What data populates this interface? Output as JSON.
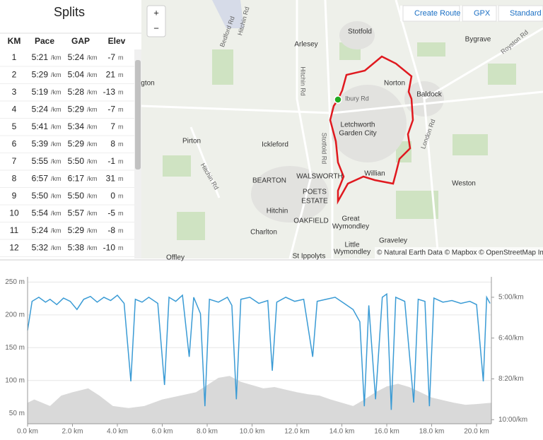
{
  "splits": {
    "title": "Splits",
    "columns": [
      "KM",
      "Pace",
      "GAP",
      "Elev"
    ],
    "units": {
      "pace": "/km",
      "elev": "m"
    },
    "rows": [
      {
        "km": "1",
        "pace": "5:21",
        "gap": "5:24",
        "elev": "-7"
      },
      {
        "km": "2",
        "pace": "5:29",
        "gap": "5:04",
        "elev": "21"
      },
      {
        "km": "3",
        "pace": "5:19",
        "gap": "5:28",
        "elev": "-13"
      },
      {
        "km": "4",
        "pace": "5:24",
        "gap": "5:29",
        "elev": "-7"
      },
      {
        "km": "5",
        "pace": "5:41",
        "gap": "5:34",
        "elev": "7"
      },
      {
        "km": "6",
        "pace": "5:39",
        "gap": "5:29",
        "elev": "8"
      },
      {
        "km": "7",
        "pace": "5:55",
        "gap": "5:50",
        "elev": "-1"
      },
      {
        "km": "8",
        "pace": "6:57",
        "gap": "6:17",
        "elev": "31"
      },
      {
        "km": "9",
        "pace": "5:50",
        "gap": "5:50",
        "elev": "0"
      },
      {
        "km": "10",
        "pace": "5:54",
        "gap": "5:57",
        "elev": "-5"
      },
      {
        "km": "11",
        "pace": "5:24",
        "gap": "5:29",
        "elev": "-8"
      },
      {
        "km": "12",
        "pace": "5:32",
        "gap": "5:38",
        "elev": "-10"
      }
    ]
  },
  "map": {
    "buttons": [
      "Create Route",
      "GPX",
      "Standard Ma"
    ],
    "zoom": [
      "+",
      "−"
    ],
    "attribution": "© Natural Earth Data © Mapbox © OpenStreetMap Im",
    "places": [
      "Stotfold",
      "Arlesey",
      "Bygrave",
      "Norton",
      "Baldock",
      "Letchworth",
      "Garden City",
      "Pirton",
      "Ickleford",
      "Willian",
      "BEARTON",
      "WALSWORTH",
      "POETS",
      "ESTATE",
      "Weston",
      "Hitchin",
      "OAKFIELD",
      "Great",
      "Wymondley",
      "Charlton",
      "Graveley",
      "Little",
      "Wymondley",
      "St Ippolyts",
      "Offley",
      "gton"
    ],
    "roads": [
      "Hitchin Rd",
      "Bedford Rd",
      "Hitchin Rd",
      "Stotfold Rd",
      "London Rd",
      "Royston Rd",
      "lbury Rd",
      "Hitchin Rd"
    ]
  },
  "chart_data": {
    "type": "line",
    "xlim": [
      0,
      20.66
    ],
    "ylim": [
      34,
      258
    ],
    "y2lim": [
      610,
      250
    ],
    "xticks": [
      {
        "value": 0,
        "label": "0.0 km"
      },
      {
        "value": 2,
        "label": "2.0 km"
      },
      {
        "value": 4,
        "label": "4.0 km"
      },
      {
        "value": 6,
        "label": "6.0 km"
      },
      {
        "value": 8,
        "label": "8.0 km"
      },
      {
        "value": 10,
        "label": "10.0 km"
      },
      {
        "value": 12,
        "label": "12.0 km"
      },
      {
        "value": 14,
        "label": "14.0 km"
      },
      {
        "value": 16,
        "label": "16.0 km"
      },
      {
        "value": 18,
        "label": "18.0 km"
      },
      {
        "value": 20,
        "label": "20.0 km"
      }
    ],
    "yticks": [
      {
        "value": 50,
        "label": "50 m"
      },
      {
        "value": 100,
        "label": "100 m"
      },
      {
        "value": 150,
        "label": "150 m"
      },
      {
        "value": 200,
        "label": "200 m"
      },
      {
        "value": 250,
        "label": "250 m"
      }
    ],
    "y2ticks": [
      {
        "value": 300,
        "label": "5:00/km"
      },
      {
        "value": 400,
        "label": "6:40/km"
      },
      {
        "value": 500,
        "label": "8:20/km"
      },
      {
        "value": 600,
        "label": "10:00/km"
      }
    ],
    "grid": true,
    "elevation": {
      "color": "#d9d9d9",
      "x": [
        0,
        0.3,
        1,
        1.5,
        2,
        2.7,
        3.2,
        3.8,
        4.5,
        5.2,
        6,
        6.8,
        7.5,
        8,
        8.5,
        9,
        9.5,
        10,
        10.5,
        11,
        11.5,
        12,
        12.5,
        13,
        13.5,
        14,
        14.5,
        15,
        15.5,
        16,
        16.5,
        17,
        17.5,
        18,
        18.5,
        19,
        19.5,
        20,
        20.66
      ],
      "values": [
        66,
        71,
        61,
        77,
        82,
        88,
        77,
        61,
        58,
        61,
        71,
        77,
        82,
        93,
        104,
        107,
        98,
        93,
        88,
        90,
        86,
        82,
        79,
        77,
        71,
        66,
        61,
        71,
        82,
        91,
        95,
        90,
        82,
        74,
        70,
        66,
        63,
        64,
        66
      ]
    },
    "pace": {
      "color": "#3a9bd5",
      "axis": "y2",
      "x": [
        0,
        0.2,
        0.5,
        0.8,
        1,
        1.3,
        1.6,
        1.9,
        2.2,
        2.5,
        2.8,
        3.1,
        3.4,
        3.7,
        4,
        4.3,
        4.6,
        4.8,
        5.1,
        5.4,
        5.8,
        6.1,
        6.3,
        6.6,
        6.9,
        7.2,
        7.4,
        7.7,
        7.9,
        8.1,
        8.5,
        8.9,
        9.1,
        9.3,
        9.5,
        9.9,
        10.3,
        10.7,
        10.9,
        11.1,
        11.5,
        11.9,
        12.3,
        12.7,
        12.9,
        13.3,
        13.7,
        14.1,
        14.5,
        14.8,
        15,
        15.2,
        15.5,
        15.8,
        16,
        16.2,
        16.4,
        16.8,
        17.2,
        17.4,
        17.7,
        17.9,
        18.1,
        18.5,
        18.9,
        19.3,
        19.7,
        20,
        20.3,
        20.45,
        20.6
      ],
      "values": [
        381,
        310,
        300,
        312,
        305,
        318,
        302,
        310,
        330,
        305,
        298,
        312,
        300,
        308,
        295,
        315,
        506,
        305,
        312,
        300,
        315,
        515,
        300,
        310,
        295,
        446,
        300,
        340,
        567,
        305,
        312,
        300,
        320,
        550,
        305,
        300,
        315,
        308,
        480,
        312,
        300,
        310,
        305,
        446,
        310,
        305,
        300,
        315,
        330,
        360,
        567,
        320,
        550,
        300,
        292,
        576,
        300,
        310,
        558,
        305,
        310,
        567,
        302,
        312,
        308,
        315,
        310,
        318,
        506,
        300,
        315
      ]
    }
  }
}
